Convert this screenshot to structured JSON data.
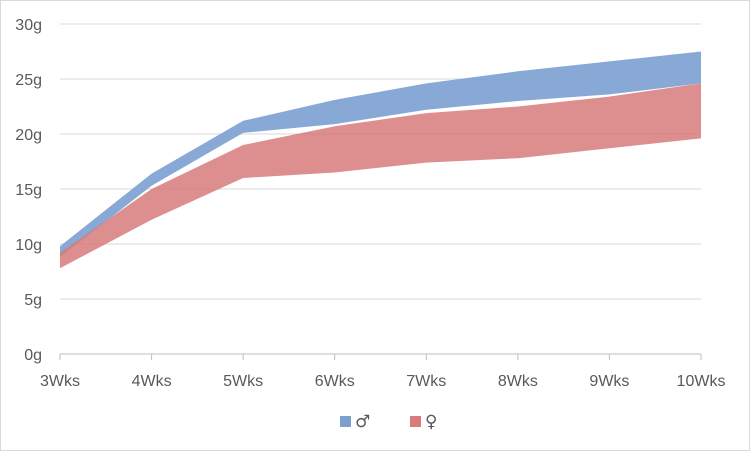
{
  "chart_data": {
    "type": "area",
    "categories": [
      "3Wks",
      "4Wks",
      "5Wks",
      "6Wks",
      "7Wks",
      "8Wks",
      "9Wks",
      "10Wks"
    ],
    "ylim": [
      0,
      30
    ],
    "y_ticks": [
      "0g",
      "5g",
      "10g",
      "15g",
      "20g",
      "25g",
      "30g"
    ],
    "y_tick_values": [
      0,
      5,
      10,
      15,
      20,
      25,
      30
    ],
    "grid": true,
    "legend_position": "bottom",
    "series": [
      {
        "name": "♂",
        "color": "#7ba0d0",
        "lower": [
          8.8,
          15.3,
          20.1,
          20.9,
          22.2,
          23.0,
          23.6,
          24.6
        ],
        "upper": [
          9.8,
          16.4,
          21.2,
          23.1,
          24.6,
          25.7,
          26.6,
          27.5
        ]
      },
      {
        "name": "♀",
        "color": "#d77b7b",
        "lower": [
          7.8,
          12.2,
          16.0,
          16.5,
          17.4,
          17.8,
          18.7,
          19.6
        ],
        "upper": [
          9.2,
          15.0,
          19.0,
          20.7,
          21.9,
          22.5,
          23.4,
          24.6
        ]
      }
    ]
  }
}
